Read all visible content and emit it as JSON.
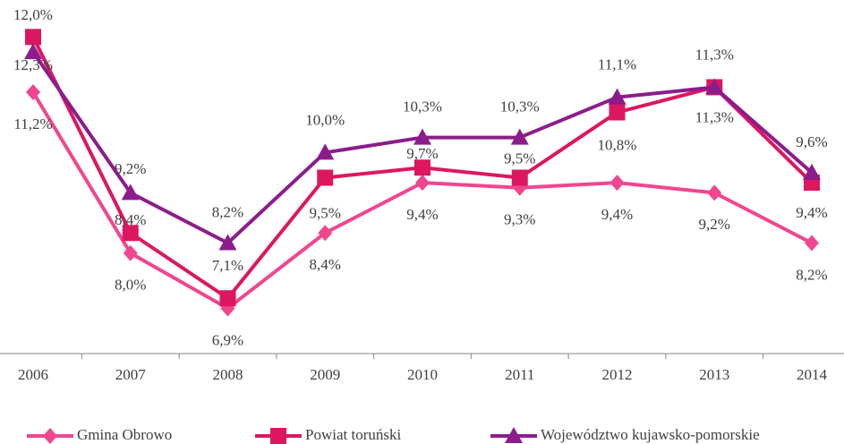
{
  "chart_data": {
    "type": "line",
    "categories": [
      "2006",
      "2007",
      "2008",
      "2009",
      "2010",
      "2011",
      "2012",
      "2013",
      "2014"
    ],
    "ylim": [
      6,
      13
    ],
    "series": [
      {
        "name": "Gmina Obrowo",
        "color": "#f0468f",
        "marker": "diamond",
        "values": [
          11.2,
          8.0,
          6.9,
          8.4,
          9.4,
          9.3,
          9.4,
          9.2,
          8.2
        ],
        "value_labels": [
          "11,2%",
          "8,0%",
          "6,9%",
          "8,4%",
          "9,4%",
          "9,3%",
          "9,4%",
          "9,2%",
          "8,2%"
        ]
      },
      {
        "name": "Powiat toruński",
        "color": "#dc1760",
        "marker": "square",
        "values": [
          12.3,
          8.4,
          7.1,
          9.5,
          9.7,
          9.5,
          10.8,
          11.3,
          9.4
        ],
        "value_labels": [
          "12,3%",
          "8,4%",
          "7,1%",
          "9,5%",
          "9,7%",
          "9,5%",
          "10,8%",
          "11,3%",
          "9,4%"
        ]
      },
      {
        "name": "Województwo kujawsko-pomorskie",
        "color": "#8c1c8c",
        "marker": "triangle",
        "values": [
          12.0,
          9.2,
          8.2,
          10.0,
          10.3,
          10.3,
          11.1,
          11.3,
          9.6
        ],
        "value_labels": [
          "12,0%",
          "9,2%",
          "8,2%",
          "10,0%",
          "10,3%",
          "10,3%",
          "11,1%",
          "11,3%",
          "9,6%"
        ]
      }
    ]
  }
}
